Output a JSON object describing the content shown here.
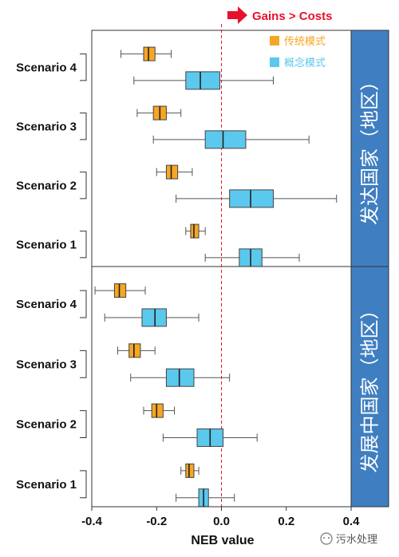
{
  "banner": "Gains > Costs",
  "watermark": "污水处理",
  "chart_data": {
    "type": "boxplot",
    "xlabel": "NEB value",
    "xlim": [
      -0.4,
      0.4
    ],
    "xticks": [
      -0.4,
      -0.2,
      0.0,
      0.2,
      0.4
    ],
    "xtick_labels": [
      "-0.4",
      "-0.2",
      "0.0",
      "0.2",
      "0.4"
    ],
    "reference_line": 0.0,
    "grid": false,
    "legend": {
      "placement": "top-right of upper panel",
      "entries": [
        {
          "name": "传统模式",
          "color": "#f5a623"
        },
        {
          "name": "概念模式",
          "color": "#5bc8ee"
        }
      ]
    },
    "panels": [
      {
        "region": "发达国家（地区）",
        "groups": [
          {
            "scenario": "Scenario 4",
            "传统模式": {
              "min": -0.31,
              "q1": -0.24,
              "median": -0.225,
              "q3": -0.205,
              "max": -0.155
            },
            "概念模式": {
              "min": -0.27,
              "q1": -0.11,
              "median": -0.065,
              "q3": -0.005,
              "max": 0.16
            }
          },
          {
            "scenario": "Scenario 3",
            "传统模式": {
              "min": -0.26,
              "q1": -0.21,
              "median": -0.19,
              "q3": -0.17,
              "max": -0.125
            },
            "概念模式": {
              "min": -0.21,
              "q1": -0.05,
              "median": 0.005,
              "q3": 0.075,
              "max": 0.27
            }
          },
          {
            "scenario": "Scenario 2",
            "传统模式": {
              "min": -0.2,
              "q1": -0.17,
              "median": -0.155,
              "q3": -0.135,
              "max": -0.09
            },
            "概念模式": {
              "min": -0.14,
              "q1": 0.025,
              "median": 0.09,
              "q3": 0.16,
              "max": 0.355
            }
          },
          {
            "scenario": "Scenario 1",
            "传统模式": {
              "min": -0.11,
              "q1": -0.095,
              "median": -0.085,
              "q3": -0.07,
              "max": -0.05
            },
            "概念模式": {
              "min": -0.05,
              "q1": 0.055,
              "median": 0.09,
              "q3": 0.125,
              "max": 0.24
            }
          }
        ]
      },
      {
        "region": "发展中国家（地区）",
        "groups": [
          {
            "scenario": "Scenario 4",
            "传统模式": {
              "min": -0.39,
              "q1": -0.33,
              "median": -0.315,
              "q3": -0.295,
              "max": -0.235
            },
            "概念模式": {
              "min": -0.36,
              "q1": -0.245,
              "median": -0.205,
              "q3": -0.17,
              "max": -0.07
            }
          },
          {
            "scenario": "Scenario 3",
            "传统模式": {
              "min": -0.32,
              "q1": -0.285,
              "median": -0.27,
              "q3": -0.25,
              "max": -0.205
            },
            "概念模式": {
              "min": -0.28,
              "q1": -0.17,
              "median": -0.13,
              "q3": -0.085,
              "max": 0.025
            }
          },
          {
            "scenario": "Scenario 2",
            "传统模式": {
              "min": -0.24,
              "q1": -0.215,
              "median": -0.2,
              "q3": -0.18,
              "max": -0.145
            },
            "概念模式": {
              "min": -0.18,
              "q1": -0.075,
              "median": -0.035,
              "q3": 0.005,
              "max": 0.11
            }
          },
          {
            "scenario": "Scenario 1",
            "传统模式": {
              "min": -0.125,
              "q1": -0.11,
              "median": -0.1,
              "q3": -0.085,
              "max": -0.07
            },
            "概念模式": {
              "min": -0.14,
              "q1": -0.07,
              "median": -0.055,
              "q3": -0.04,
              "max": 0.04
            }
          }
        ]
      }
    ]
  }
}
